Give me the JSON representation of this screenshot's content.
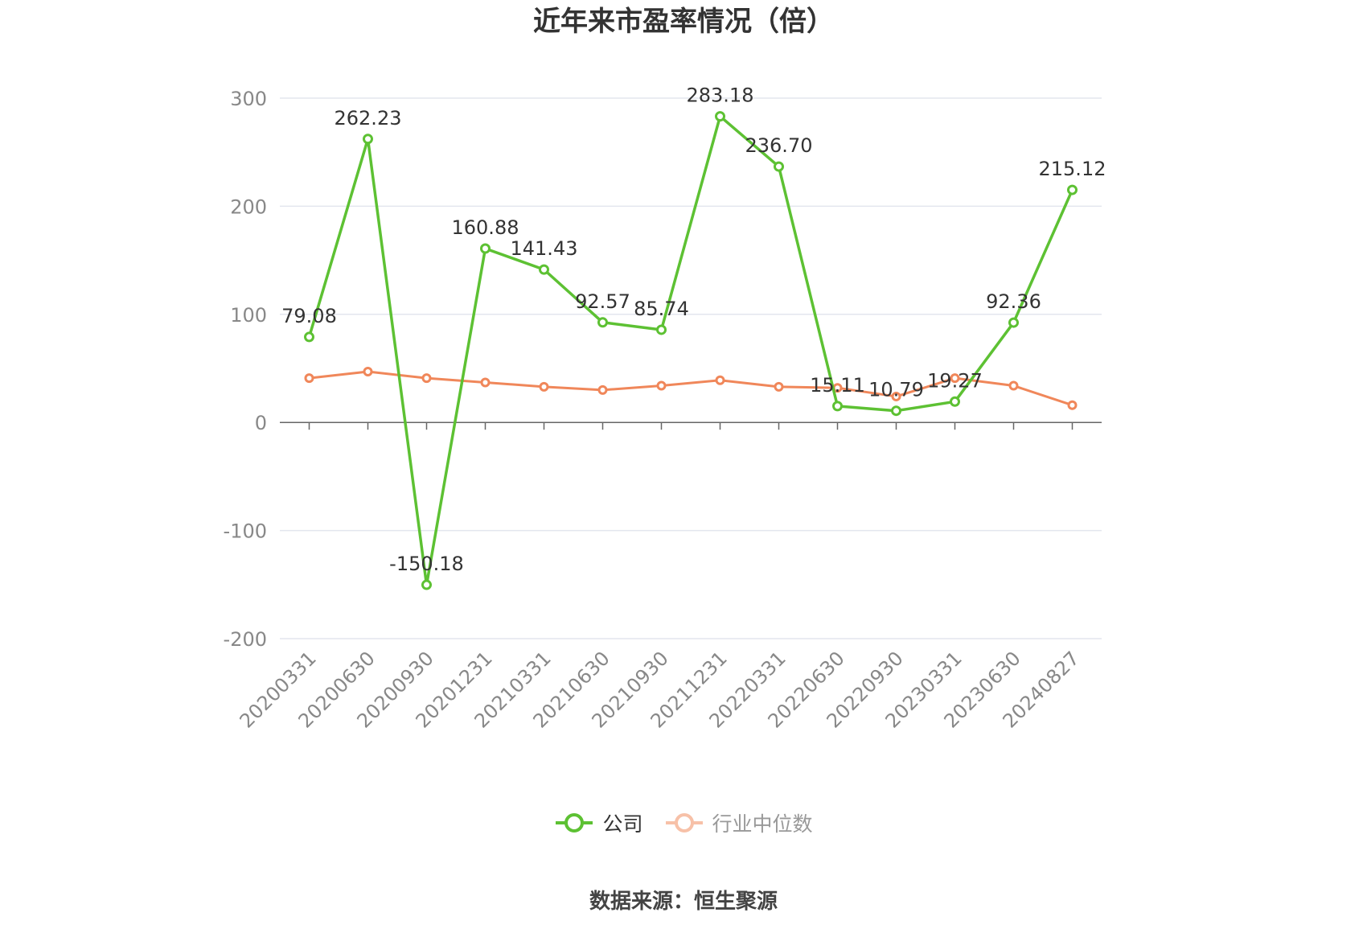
{
  "chart_data": {
    "type": "line",
    "title": "近年来市盈率情况（倍）",
    "categories": [
      "20200331",
      "20200630",
      "20200930",
      "20201231",
      "20210331",
      "20210630",
      "20210930",
      "20211231",
      "20220331",
      "20220630",
      "20220930",
      "20230331",
      "20230630",
      "20240827"
    ],
    "ylim": [
      -200,
      300
    ],
    "yticks": [
      -200,
      -100,
      0,
      100,
      200,
      300
    ],
    "grid": true,
    "legend_position": "bottom",
    "series": [
      {
        "name": "公司",
        "color": "#5dc133",
        "show_labels": true,
        "values": [
          79.08,
          262.23,
          -150.18,
          160.88,
          141.43,
          92.57,
          85.74,
          283.18,
          236.7,
          15.11,
          10.79,
          19.27,
          92.36,
          215.12
        ],
        "labels": [
          "79.08",
          "262.23",
          "-150.18",
          "160.88",
          "141.43",
          "92.57",
          "85.74",
          "283.18",
          "236.70",
          "15.11",
          "10.79",
          "19.27",
          "92.36",
          "215.12"
        ]
      },
      {
        "name": "行业中位数",
        "color": "#f0875a",
        "show_labels": false,
        "values": [
          41,
          47,
          41,
          37,
          33,
          30,
          34,
          39,
          33,
          32,
          24,
          41,
          34,
          16
        ]
      }
    ]
  },
  "legend": {
    "company": "公司",
    "industry": "行业中位数"
  },
  "source": "数据来源：恒生聚源"
}
